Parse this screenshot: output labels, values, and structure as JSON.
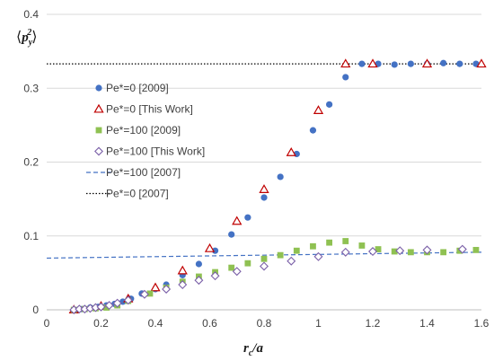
{
  "chart_data": {
    "type": "scatter",
    "xlabel_main": "r",
    "xlabel_sub": "c",
    "xlabel_tail": "/a",
    "ylabel_main": "p",
    "ylabel_sub": "y",
    "ylabel_sup": "2",
    "xlim": [
      0,
      1.6
    ],
    "ylim": [
      0,
      0.4
    ],
    "xticks": [
      "0",
      "0.2",
      "0.4",
      "0.6",
      "0.8",
      "1",
      "1.2",
      "1.4",
      "1.6"
    ],
    "yticks": [
      "0",
      "0.1",
      "0.2",
      "0.3",
      "0.4"
    ],
    "legend_position": "left",
    "series": [
      {
        "name": "Pe*=0 [2009]",
        "marker": "circle",
        "color": "#4472c4",
        "x": [
          0.1,
          0.13,
          0.16,
          0.19,
          0.22,
          0.25,
          0.28,
          0.31,
          0.35,
          0.4,
          0.44,
          0.5,
          0.56,
          0.62,
          0.68,
          0.74,
          0.8,
          0.86,
          0.92,
          0.98,
          1.04,
          1.1,
          1.16,
          1.22,
          1.28,
          1.34,
          1.4,
          1.46,
          1.52,
          1.58
        ],
        "y": [
          0.0,
          0.001,
          0.003,
          0.004,
          0.006,
          0.008,
          0.011,
          0.015,
          0.022,
          0.028,
          0.034,
          0.047,
          0.062,
          0.08,
          0.102,
          0.125,
          0.152,
          0.18,
          0.211,
          0.243,
          0.278,
          0.315,
          0.333,
          0.333,
          0.332,
          0.333,
          0.333,
          0.334,
          0.333,
          0.333
        ]
      },
      {
        "name": "Pe*=0 [This Work]",
        "marker": "triangle",
        "color": "#c00000",
        "x": [
          0.1,
          0.2,
          0.3,
          0.4,
          0.5,
          0.6,
          0.7,
          0.8,
          0.9,
          1.0,
          1.1,
          1.2,
          1.4,
          1.6
        ],
        "y": [
          0.0,
          0.005,
          0.015,
          0.03,
          0.053,
          0.083,
          0.12,
          0.163,
          0.213,
          0.27,
          0.333,
          0.333,
          0.333,
          0.333
        ]
      },
      {
        "name": "Pe*=100 [2009]",
        "marker": "square",
        "color": "#8fc152",
        "x": [
          0.1,
          0.14,
          0.18,
          0.22,
          0.26,
          0.3,
          0.38,
          0.44,
          0.5,
          0.56,
          0.62,
          0.68,
          0.74,
          0.8,
          0.86,
          0.92,
          0.98,
          1.04,
          1.1,
          1.16,
          1.22,
          1.28,
          1.34,
          1.4,
          1.46,
          1.52,
          1.58
        ],
        "y": [
          0.0,
          0.001,
          0.002,
          0.003,
          0.006,
          0.012,
          0.022,
          0.03,
          0.038,
          0.045,
          0.051,
          0.057,
          0.063,
          0.069,
          0.074,
          0.08,
          0.086,
          0.091,
          0.093,
          0.087,
          0.082,
          0.079,
          0.078,
          0.078,
          0.078,
          0.08,
          0.081
        ]
      },
      {
        "name": "Pe*=100 [This Work]",
        "marker": "diamond",
        "color": "#7b60a8",
        "x": [
          0.1,
          0.12,
          0.14,
          0.16,
          0.18,
          0.2,
          0.23,
          0.26,
          0.3,
          0.36,
          0.44,
          0.5,
          0.56,
          0.62,
          0.7,
          0.8,
          0.9,
          1.0,
          1.1,
          1.2,
          1.3,
          1.4,
          1.53
        ],
        "y": [
          0.0,
          0.001,
          0.001,
          0.002,
          0.003,
          0.004,
          0.006,
          0.009,
          0.013,
          0.021,
          0.028,
          0.034,
          0.04,
          0.046,
          0.052,
          0.059,
          0.066,
          0.072,
          0.078,
          0.079,
          0.08,
          0.081,
          0.082
        ]
      },
      {
        "name": "Pe*=100 [2007]",
        "line": "dashed",
        "color": "#4472c4",
        "x": [
          0.0,
          1.6
        ],
        "y": [
          0.07,
          0.078
        ]
      },
      {
        "name": "Pe*=0 [2007]",
        "line": "dotted",
        "color": "#000000",
        "x": [
          0.0,
          1.6
        ],
        "y": [
          0.333,
          0.333
        ]
      }
    ]
  }
}
